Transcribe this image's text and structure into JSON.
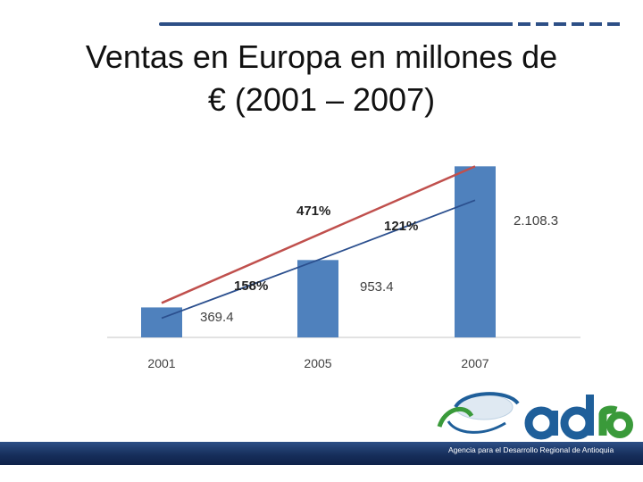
{
  "slide": {
    "title_line1": "Ventas en Europa en millones de",
    "title_line2": "€ (2001 – 2007)"
  },
  "chart_data": {
    "type": "bar",
    "categories": [
      "2001",
      "2005",
      "2007"
    ],
    "series": [
      {
        "values": [
          369.4,
          953.4,
          2108.3
        ],
        "data_labels": [
          "369.4",
          "953.4",
          "2.108.3"
        ]
      }
    ],
    "trend_lines": [
      {
        "kind": "line",
        "color": "#2b4f8e",
        "values": [
          369.4,
          953.4,
          2108.3
        ]
      },
      {
        "kind": "line",
        "color": "#c0504d",
        "values": [
          369.4,
          null,
          2108.3
        ]
      }
    ],
    "growth_annotations": [
      {
        "label": "158%",
        "between": [
          "2001",
          "2005"
        ]
      },
      {
        "label": "121%",
        "between": [
          "2005",
          "2007"
        ]
      },
      {
        "label": "471%",
        "between": [
          "2001",
          "2007"
        ]
      }
    ],
    "ylim": [
      0,
      2200
    ],
    "grid": false,
    "legend": "none",
    "bar_color": "#4f81bd"
  },
  "logo": {
    "wordmark": "adra",
    "caption": "Agencia para el Desarrollo Regional de Antioquia"
  }
}
